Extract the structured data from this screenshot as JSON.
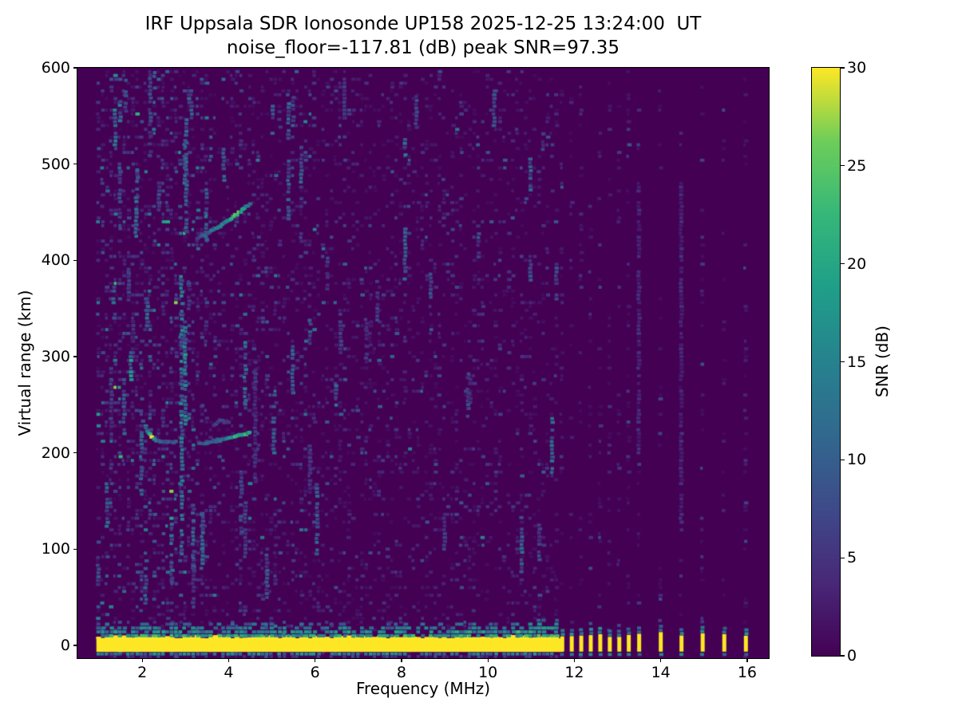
{
  "chart_data": {
    "type": "heatmap",
    "title": "IRF Uppsala SDR Ionosonde UP158 2025-12-25 13:24:00  UT",
    "subtitle": "noise_floor=-117.81 (dB) peak SNR=97.35",
    "station": "UP158",
    "timestamp_ut": "2025-12-25 13:24:00",
    "noise_floor_db": -117.81,
    "peak_snr_db": 97.35,
    "xlabel": "Frequency (MHz)",
    "ylabel": "Virtual range (km)",
    "xlim": [
      0.5,
      16.5
    ],
    "ylim": [
      -13.3,
      600
    ],
    "xticks": [
      2,
      4,
      6,
      8,
      10,
      12,
      14,
      16
    ],
    "yticks": [
      0,
      100,
      200,
      300,
      400,
      500,
      600
    ],
    "grid": false,
    "colorbar": {
      "label": "SNR (dB)",
      "min": 0,
      "max": 30,
      "ticks": [
        0,
        5,
        10,
        15,
        20,
        25,
        30
      ],
      "colormap": "viridis"
    },
    "colors": {
      "background": "#ffffff",
      "text": "#000000",
      "cmap_min": "#440154",
      "cmap_max": "#fde725",
      "viridis_stops": [
        "#440154",
        "#482878",
        "#3e4a89",
        "#31688e",
        "#26828e",
        "#1f9e89",
        "#35b779",
        "#6dcd59",
        "#fde725"
      ]
    },
    "sweep": {
      "continuous_mhz": [
        0.99,
        11.68
      ],
      "step_mhz": 0.1,
      "discrete_mhz": [
        11.72,
        11.94,
        12.16,
        12.38,
        12.6,
        12.82,
        13.04,
        13.26,
        13.5,
        14.0,
        14.48,
        14.97,
        15.47,
        15.97
      ]
    },
    "ground_pulse": {
      "freq_range_mhz": [
        0.99,
        11.68
      ],
      "km_range": [
        -7,
        9
      ],
      "snr_db": 30,
      "fuzz_top_km": 24,
      "hump_start_mhz": 10.6
    },
    "echo_traces": [
      {
        "name": "E-region echo hook",
        "points": [
          [
            1.97,
            243,
            6
          ],
          [
            2.02,
            234,
            8
          ],
          [
            2.08,
            226,
            10
          ],
          [
            2.15,
            220,
            14
          ],
          [
            2.22,
            217,
            26
          ],
          [
            2.28,
            214,
            16
          ],
          [
            2.38,
            212,
            10
          ],
          [
            2.52,
            211,
            9
          ],
          [
            2.68,
            211,
            8
          ],
          [
            2.82,
            212,
            8
          ]
        ]
      },
      {
        "name": "E-region echo flat",
        "points": [
          [
            3.32,
            210,
            8
          ],
          [
            3.55,
            211,
            10
          ],
          [
            3.75,
            213,
            10
          ],
          [
            3.95,
            214,
            12
          ],
          [
            4.1,
            216,
            18
          ],
          [
            4.25,
            218,
            22
          ],
          [
            4.4,
            219,
            20
          ],
          [
            4.52,
            221,
            14
          ]
        ]
      },
      {
        "name": "E-region faint arc",
        "points": [
          [
            3.66,
            228,
            5
          ],
          [
            3.8,
            233,
            7
          ],
          [
            3.95,
            232,
            6
          ],
          [
            4.05,
            229,
            4
          ]
        ]
      },
      {
        "name": "F-region echo",
        "points": [
          [
            3.28,
            423,
            5
          ],
          [
            3.38,
            426,
            8
          ],
          [
            3.52,
            429,
            10
          ],
          [
            3.68,
            433,
            12
          ],
          [
            3.85,
            437,
            14
          ],
          [
            4.02,
            442,
            18
          ],
          [
            4.15,
            447,
            24
          ],
          [
            4.28,
            451,
            22
          ],
          [
            4.4,
            455,
            16
          ],
          [
            4.5,
            458,
            12
          ],
          [
            4.56,
            461,
            8
          ]
        ]
      }
    ],
    "noise_streaks": [
      [
        1.35,
        340,
        375,
        11
      ],
      [
        1.38,
        520,
        560,
        12
      ],
      [
        1.5,
        545,
        580,
        11
      ],
      [
        1.62,
        555,
        590,
        9
      ],
      [
        1.74,
        272,
        306,
        16
      ],
      [
        1.86,
        425,
        468,
        11
      ],
      [
        2.12,
        332,
        362,
        10
      ],
      [
        2.3,
        575,
        598,
        9
      ],
      [
        2.92,
        95,
        385,
        13
      ],
      [
        3.0,
        230,
        330,
        15
      ],
      [
        3.02,
        430,
        548,
        10
      ],
      [
        3.15,
        548,
        585,
        9
      ],
      [
        3.4,
        85,
        140,
        10
      ],
      [
        4.3,
        118,
        180,
        7
      ],
      [
        4.62,
        170,
        300,
        5
      ],
      [
        5.05,
        196,
        262,
        10
      ],
      [
        5.02,
        532,
        562,
        10
      ],
      [
        5.5,
        545,
        572,
        8
      ],
      [
        6.05,
        95,
        170,
        9
      ],
      [
        6.6,
        300,
        345,
        6
      ],
      [
        7.45,
        338,
        382,
        6
      ],
      [
        8.35,
        538,
        572,
        7
      ],
      [
        9.0,
        100,
        142,
        6
      ],
      [
        9.55,
        238,
        285,
        8
      ],
      [
        10.15,
        540,
        576,
        7
      ],
      [
        11.2,
        85,
        128,
        8
      ],
      [
        13.5,
        200,
        480,
        4
      ],
      [
        14.48,
        120,
        480,
        4
      ]
    ],
    "noise": {
      "seed": 7,
      "row_step_km": 4.0,
      "bands": [
        {
          "f_max": 2.0,
          "dash_prob": 0.42,
          "gain": 1.7,
          "streak_prob": 0.75
        },
        {
          "f_max": 3.5,
          "dash_prob": 0.4,
          "gain": 1.6,
          "streak_prob": 0.6
        },
        {
          "f_max": 6.0,
          "dash_prob": 0.3,
          "gain": 1.25,
          "streak_prob": 0.45
        },
        {
          "f_max": 9.0,
          "dash_prob": 0.27,
          "gain": 1.0,
          "streak_prob": 0.35
        },
        {
          "f_max": 11.7,
          "dash_prob": 0.25,
          "gain": 0.95,
          "streak_prob": 0.3
        },
        {
          "f_max": 16.5,
          "dash_prob": 0.3,
          "gain": 0.8,
          "streak_prob": 0.15
        }
      ]
    }
  }
}
